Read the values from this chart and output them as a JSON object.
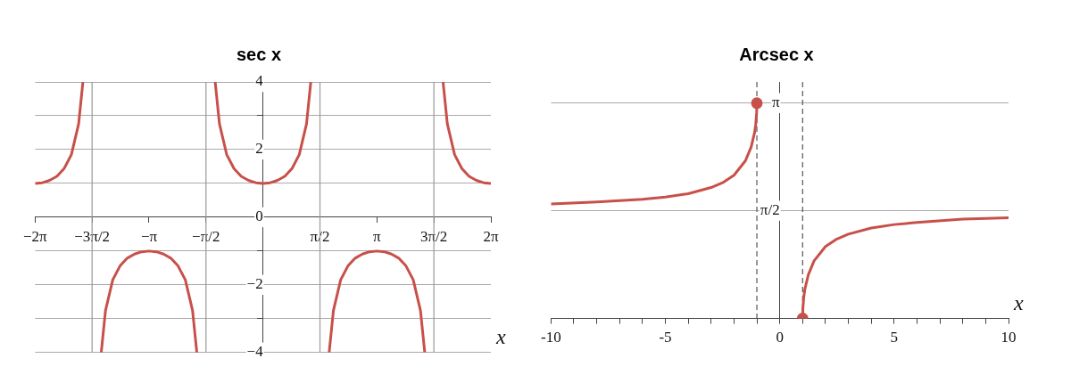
{
  "chart_data": [
    {
      "type": "line",
      "title": "sec x",
      "xlabel": "x",
      "xlim": [
        -6.283,
        6.283
      ],
      "ylim": [
        -4,
        4
      ],
      "xticks": [
        {
          "value": -6.283,
          "label": "−2π"
        },
        {
          "value": -4.712,
          "label": "−3π/2"
        },
        {
          "value": -3.142,
          "label": "−π"
        },
        {
          "value": -1.571,
          "label": "−π/2"
        },
        {
          "value": 1.571,
          "label": "π/2"
        },
        {
          "value": 3.142,
          "label": "π"
        },
        {
          "value": 4.712,
          "label": "3π/2"
        },
        {
          "value": 6.283,
          "label": "2π"
        }
      ],
      "yticks": [
        {
          "value": -4,
          "label": "−4"
        },
        {
          "value": -3,
          "label": null
        },
        {
          "value": -2,
          "label": "−2"
        },
        {
          "value": -1,
          "label": null
        },
        0,
        {
          "value": 1,
          "label": null
        },
        2,
        {
          "value": 3,
          "label": null
        },
        4
      ],
      "grid": "y",
      "ref_lines": [
        {
          "axis": "x",
          "value": -4.712,
          "color": "#999999",
          "line_style": "solid"
        },
        {
          "axis": "x",
          "value": -1.571,
          "color": "#999999",
          "line_style": "solid"
        },
        {
          "axis": "x",
          "value": 1.571,
          "color": "#999999",
          "line_style": "solid"
        },
        {
          "axis": "x",
          "value": 4.712,
          "color": "#999999",
          "line_style": "solid"
        }
      ],
      "series": [
        {
          "color": "#c8504a",
          "marker": "none",
          "x": [
            -6.283,
            -6.083,
            -5.883,
            -5.683,
            -5.483,
            -5.283,
            -5.083,
            -4.965,
            -4.712,
            -4.46,
            -4.342,
            -4.142,
            -3.942,
            -3.742,
            -3.542,
            -3.342,
            -3.142,
            -2.942,
            -2.742,
            -2.542,
            -2.342,
            -2.142,
            -1.942,
            -1.824,
            -1.571,
            -1.318,
            -1.2,
            -1,
            -0.8,
            -0.6,
            -0.4,
            -0.2,
            0,
            0.2,
            0.4,
            0.6,
            0.8,
            1,
            1.2,
            1.318,
            1.571,
            1.824,
            1.942,
            2.142,
            2.342,
            2.542,
            2.742,
            2.942,
            3.142,
            3.342,
            3.542,
            3.742,
            3.942,
            4.142,
            4.342,
            4.46,
            4.712,
            4.965,
            5.083,
            5.283,
            5.483,
            5.683,
            5.883,
            6.083,
            6.283
          ],
          "values": [
            1,
            1.02,
            1.09,
            1.21,
            1.44,
            1.85,
            2.76,
            4,
            null,
            -4,
            -2.76,
            -1.85,
            -1.44,
            -1.21,
            -1.09,
            -1.02,
            -1,
            -1.02,
            -1.09,
            -1.21,
            -1.44,
            -1.85,
            -2.76,
            -4,
            null,
            4,
            2.76,
            1.85,
            1.44,
            1.21,
            1.09,
            1.02,
            1,
            1.02,
            1.09,
            1.21,
            1.44,
            1.85,
            2.76,
            4,
            null,
            -4,
            -2.76,
            -1.85,
            -1.44,
            -1.21,
            -1.09,
            -1.02,
            -1,
            -1.02,
            -1.09,
            -1.21,
            -1.44,
            -1.85,
            -2.76,
            -4,
            null,
            4,
            2.76,
            1.85,
            1.44,
            1.21,
            1.09,
            1.02,
            1
          ]
        }
      ]
    },
    {
      "type": "line",
      "title": "Arcsec x",
      "xlabel": "x",
      "xlim": [
        -10,
        10
      ],
      "ylim": [
        0,
        3.45
      ],
      "xticks": [
        -10,
        {
          "value": -9,
          "label": null
        },
        {
          "value": -8,
          "label": null
        },
        {
          "value": -7,
          "label": null
        },
        {
          "value": -6,
          "label": null
        },
        -5,
        {
          "value": -4,
          "label": null
        },
        {
          "value": -3,
          "label": null
        },
        {
          "value": -2,
          "label": null
        },
        {
          "value": -1,
          "label": null
        },
        0,
        {
          "value": 1,
          "label": null
        },
        {
          "value": 2,
          "label": null
        },
        {
          "value": 3,
          "label": null
        },
        {
          "value": 4,
          "label": null
        },
        5,
        {
          "value": 6,
          "label": null
        },
        {
          "value": 7,
          "label": null
        },
        {
          "value": 8,
          "label": null
        },
        {
          "value": 9,
          "label": null
        },
        10
      ],
      "yticks": [
        {
          "value": 1.571,
          "label": "π/2"
        },
        {
          "value": 3.142,
          "label": "π"
        }
      ],
      "grid": "y",
      "ref_lines": [
        {
          "axis": "x",
          "value": -1,
          "color": "#555555",
          "line_style": "dashed"
        },
        {
          "axis": "x",
          "value": 1,
          "color": "#555555",
          "line_style": "dashed"
        }
      ],
      "series": [
        {
          "color": "#c8504a",
          "marker": "none",
          "x": [
            -10,
            -8,
            -6,
            -5,
            -4,
            -3,
            -2.5,
            -2,
            -1.5,
            -1.25,
            -1.1,
            -1.05,
            -1.01,
            -1,
            0,
            1,
            1.01,
            1.05,
            1.1,
            1.25,
            1.5,
            2,
            2.5,
            3,
            4,
            5,
            6,
            8,
            10
          ],
          "values": [
            1.67,
            1.7,
            1.74,
            1.77,
            1.82,
            1.91,
            1.98,
            2.09,
            2.3,
            2.5,
            2.71,
            2.83,
            3,
            3.14,
            null,
            0,
            0.14,
            0.31,
            0.43,
            0.64,
            0.84,
            1.05,
            1.16,
            1.23,
            1.32,
            1.37,
            1.4,
            1.45,
            1.47
          ]
        },
        {
          "type": "scatter",
          "color": "#c8504a",
          "marker": "circle",
          "x": [
            -1,
            1
          ],
          "values": [
            3.14,
            0
          ]
        }
      ]
    }
  ]
}
